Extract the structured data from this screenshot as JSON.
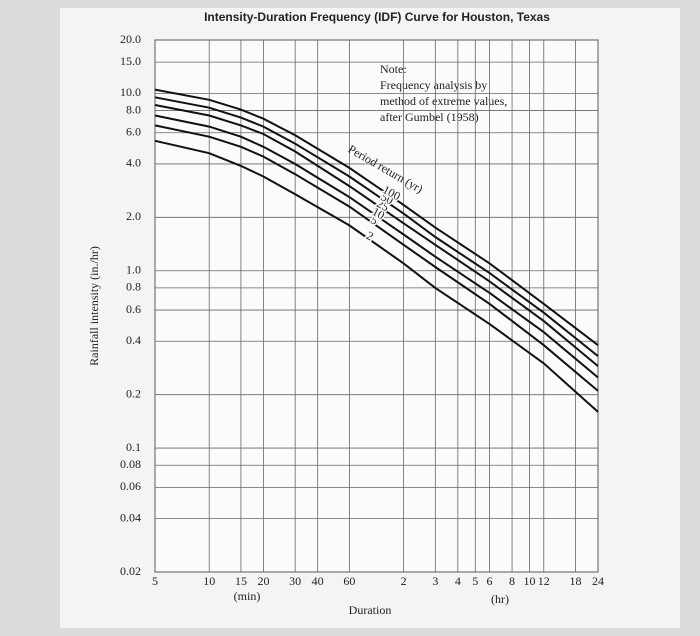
{
  "chart_data": {
    "type": "line",
    "title": "Intensity-Duration Frequency (IDF) Curve for Houston, Texas",
    "x_label": "Duration",
    "y_label": "Rainfall intensity (in./hr)",
    "x_unit_min": "(min)",
    "x_unit_hr": "(hr)",
    "note": [
      "Note:",
      "Frequency analysis by",
      "method of extreme values,",
      "after Gumbel (1958)"
    ],
    "curve_label": "Period return (yr)",
    "x_log": true,
    "y_log": true,
    "grid": true,
    "xlim": [
      5,
      1440
    ],
    "ylim": [
      0.02,
      20
    ],
    "xticks": [
      5,
      10,
      15,
      20,
      30,
      40,
      60,
      {
        "value": 120,
        "label": "2"
      },
      {
        "value": 180,
        "label": "3"
      },
      {
        "value": 240,
        "label": "4"
      },
      {
        "value": 300,
        "label": "5"
      },
      {
        "value": 360,
        "label": "6"
      },
      {
        "value": 480,
        "label": "8"
      },
      {
        "value": 600,
        "label": "10"
      },
      {
        "value": 720,
        "label": "12"
      },
      {
        "value": 1080,
        "label": "18"
      },
      {
        "value": 1440,
        "label": "24"
      }
    ],
    "yticks": [
      {
        "value": 20,
        "label": "20.0"
      },
      {
        "value": 15,
        "label": "15.0"
      },
      {
        "value": 10,
        "label": "10.0"
      },
      {
        "value": 8,
        "label": "8.0"
      },
      {
        "value": 6,
        "label": "6.0"
      },
      {
        "value": 4,
        "label": "4.0"
      },
      {
        "value": 2,
        "label": "2.0"
      },
      {
        "value": 1,
        "label": "1.0"
      },
      0.8,
      0.6,
      0.4,
      0.2,
      0.1,
      0.08,
      0.06,
      0.04,
      0.02
    ],
    "x": [
      5,
      10,
      15,
      20,
      30,
      60,
      120,
      180,
      360,
      720,
      1440
    ],
    "series": [
      {
        "name": "2",
        "color": "#111111",
        "values": [
          5.4,
          4.6,
          3.9,
          3.4,
          2.7,
          1.8,
          1.1,
          0.8,
          0.5,
          0.3,
          0.16
        ]
      },
      {
        "name": "5",
        "color": "#111111",
        "values": [
          6.6,
          5.7,
          5.0,
          4.4,
          3.5,
          2.3,
          1.4,
          1.05,
          0.65,
          0.38,
          0.21
        ]
      },
      {
        "name": "10",
        "color": "#111111",
        "values": [
          7.5,
          6.5,
          5.7,
          5.0,
          4.0,
          2.6,
          1.6,
          1.2,
          0.75,
          0.45,
          0.25
        ]
      },
      {
        "name": "25",
        "color": "#111111",
        "values": [
          8.6,
          7.5,
          6.6,
          5.9,
          4.7,
          3.0,
          1.85,
          1.4,
          0.87,
          0.52,
          0.29
        ]
      },
      {
        "name": "50",
        "color": "#111111",
        "values": [
          9.5,
          8.3,
          7.3,
          6.5,
          5.2,
          3.4,
          2.1,
          1.55,
          0.97,
          0.58,
          0.33
        ]
      },
      {
        "name": "100",
        "color": "#111111",
        "values": [
          10.5,
          9.2,
          8.1,
          7.2,
          5.8,
          3.8,
          2.35,
          1.75,
          1.1,
          0.65,
          0.38
        ]
      }
    ]
  }
}
